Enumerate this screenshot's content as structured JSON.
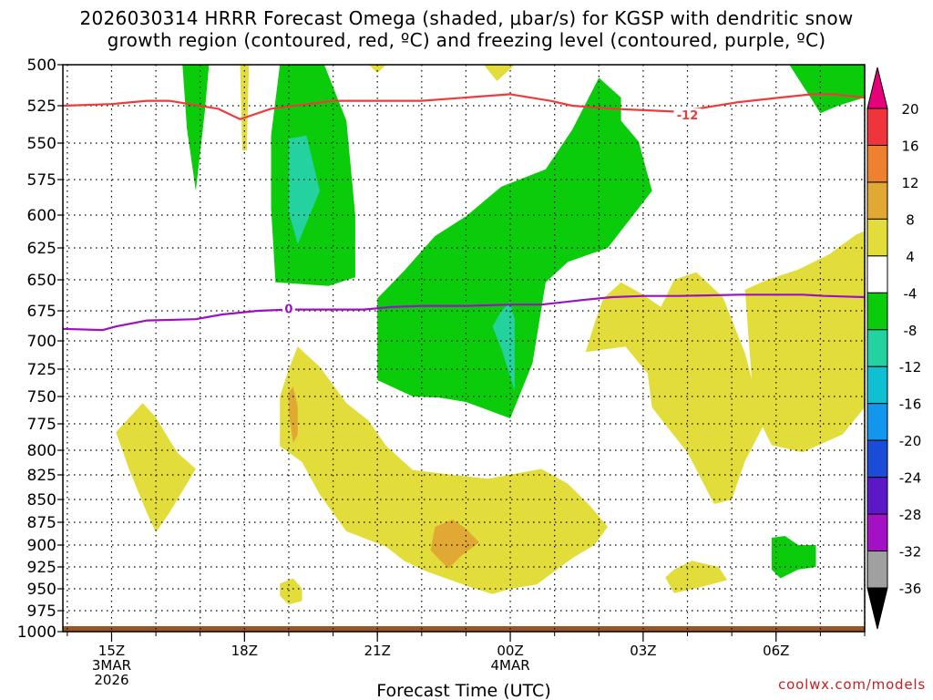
{
  "title_line1": "2026030314 HRRR Forecast Omega (shaded, μbar/s) for KGSP with dendritic snow",
  "title_line2": "growth region (contoured, red, ºC) and freezing level (contoured, purple, ºC)",
  "credit": "coolwx.com/models",
  "chart_data": {
    "type": "heatmap",
    "title": "2026030314 HRRR Forecast Omega (shaded, μbar/s) for KGSP with dendritic snow growth region (contoured, red, ºC) and freezing level (contoured, purple, ºC)",
    "xlabel": "Forecast Time (UTC)",
    "ylabel": "",
    "x_range_hours": [
      13.9,
      32.0
    ],
    "y_range_mb": [
      500,
      1000
    ],
    "y_axis_inverted": true,
    "y_ticks": [
      "500",
      "525",
      "550",
      "575",
      "600",
      "625",
      "650",
      "675",
      "700",
      "725",
      "750",
      "775",
      "800",
      "825",
      "850",
      "875",
      "900",
      "925",
      "950",
      "975",
      "1000"
    ],
    "x_ticks": [
      {
        "hour": 15,
        "labels": [
          "15Z",
          "3MAR",
          "2026"
        ]
      },
      {
        "hour": 18,
        "labels": [
          "18Z"
        ]
      },
      {
        "hour": 21,
        "labels": [
          "21Z"
        ]
      },
      {
        "hour": 24,
        "labels": [
          "00Z",
          "4MAR"
        ]
      },
      {
        "hour": 27,
        "labels": [
          "03Z"
        ]
      },
      {
        "hour": 30,
        "labels": [
          "06Z"
        ]
      }
    ],
    "colorbar": {
      "labels": [
        "20",
        "16",
        "12",
        "8",
        "4",
        "-4",
        "-8",
        "-12",
        "-16",
        "-20",
        "-24",
        "-28",
        "-32",
        "-36"
      ],
      "colors": [
        "#e6007a",
        "#f0343c",
        "#ee8030",
        "#e2a834",
        "#e2dd3a",
        "#ffffff",
        "#0acc0a",
        "#24d2a0",
        "#10c0d2",
        "#1296ee",
        "#1a4cd8",
        "#5a18c8",
        "#a410c4",
        "#a0a0a0",
        "#000000"
      ]
    },
    "omega_regions": [
      {
        "color": "#0acc0a",
        "points": [
          [
            16.6,
            500
          ],
          [
            17.2,
            500
          ],
          [
            17.1,
            530
          ],
          [
            16.9,
            583
          ],
          [
            16.7,
            540
          ]
        ]
      },
      {
        "color": "#e2dd3a",
        "points": [
          [
            17.9,
            500
          ],
          [
            18.1,
            500
          ],
          [
            18.05,
            555
          ],
          [
            17.95,
            555
          ]
        ]
      },
      {
        "color": "#0acc0a",
        "points": [
          [
            18.8,
            500
          ],
          [
            19.8,
            500
          ],
          [
            20.3,
            535
          ],
          [
            20.5,
            600
          ],
          [
            20.5,
            648
          ],
          [
            19.9,
            655
          ],
          [
            18.7,
            652
          ],
          [
            18.6,
            595
          ],
          [
            18.6,
            545
          ]
        ]
      },
      {
        "color": "#24d2a0",
        "points": [
          [
            19.0,
            547
          ],
          [
            19.4,
            545
          ],
          [
            19.7,
            583
          ],
          [
            19.2,
            622
          ],
          [
            19.0,
            598
          ]
        ]
      },
      {
        "color": "#e2dd3a",
        "points": [
          [
            20.8,
            500
          ],
          [
            21.2,
            500
          ],
          [
            21.0,
            505
          ]
        ]
      },
      {
        "color": "#e2dd3a",
        "points": [
          [
            23.4,
            500
          ],
          [
            24.1,
            500
          ],
          [
            23.7,
            510
          ]
        ]
      },
      {
        "color": "#e2dd3a",
        "points": [
          [
            29.3,
            658
          ],
          [
            29.8,
            650
          ],
          [
            30.5,
            642
          ],
          [
            31.2,
            630
          ],
          [
            31.8,
            615
          ],
          [
            32.0,
            612
          ],
          [
            32.0,
            760
          ],
          [
            31.5,
            785
          ],
          [
            30.6,
            802
          ],
          [
            29.9,
            795
          ],
          [
            29.5,
            762
          ]
        ]
      },
      {
        "color": "#0acc0a",
        "points": [
          [
            26.0,
            508
          ],
          [
            26.5,
            520
          ],
          [
            26.5,
            535
          ],
          [
            26.9,
            549
          ],
          [
            27.2,
            583
          ],
          [
            26.2,
            625
          ],
          [
            25.3,
            636
          ],
          [
            24.8,
            652
          ],
          [
            24.5,
            720
          ],
          [
            24.0,
            770
          ],
          [
            23.0,
            755
          ],
          [
            22.4,
            751
          ],
          [
            21.8,
            750
          ],
          [
            21.0,
            735
          ],
          [
            21.0,
            704
          ],
          [
            21.0,
            665
          ],
          [
            21.6,
            643
          ],
          [
            22.3,
            616
          ],
          [
            23.0,
            601
          ],
          [
            23.8,
            580
          ],
          [
            24.8,
            568
          ],
          [
            25.4,
            541
          ]
        ]
      },
      {
        "color": "#24d2a0",
        "points": [
          [
            23.6,
            688
          ],
          [
            23.8,
            675
          ],
          [
            24.0,
            668
          ],
          [
            24.1,
            682
          ],
          [
            24.1,
            745
          ],
          [
            23.8,
            707
          ]
        ]
      },
      {
        "color": "#0acc0a",
        "points": [
          [
            30.3,
            500
          ],
          [
            32.0,
            500
          ],
          [
            32.0,
            520
          ],
          [
            31.4,
            525
          ],
          [
            31.0,
            530
          ],
          [
            30.8,
            521
          ]
        ]
      },
      {
        "color": "#e2dd3a",
        "points": [
          [
            25.7,
            710
          ],
          [
            25.9,
            686
          ],
          [
            26.1,
            665
          ],
          [
            26.5,
            652
          ],
          [
            27.0,
            662
          ],
          [
            27.4,
            672
          ],
          [
            27.7,
            650
          ],
          [
            28.2,
            644
          ],
          [
            28.8,
            664
          ],
          [
            29.3,
            711
          ],
          [
            29.6,
            757
          ],
          [
            29.8,
            770
          ],
          [
            29.3,
            811
          ],
          [
            29.0,
            850
          ],
          [
            28.6,
            855
          ],
          [
            28.0,
            802
          ],
          [
            27.6,
            781
          ],
          [
            27.2,
            760
          ],
          [
            27.1,
            729
          ],
          [
            26.6,
            705
          ]
        ]
      },
      {
        "color": "#e2dd3a",
        "points": [
          [
            15.1,
            783
          ],
          [
            15.7,
            756
          ],
          [
            16.0,
            769
          ],
          [
            16.3,
            790
          ],
          [
            16.5,
            803
          ],
          [
            16.9,
            819
          ],
          [
            16.3,
            865
          ],
          [
            16.0,
            886
          ],
          [
            15.8,
            865
          ],
          [
            15.4,
            820
          ]
        ]
      },
      {
        "color": "#e2dd3a",
        "points": [
          [
            18.8,
            750
          ],
          [
            19.0,
            725
          ],
          [
            19.2,
            705
          ],
          [
            19.7,
            723
          ],
          [
            20.3,
            756
          ],
          [
            20.8,
            772
          ],
          [
            21.2,
            796
          ],
          [
            21.8,
            820
          ],
          [
            22.9,
            826
          ],
          [
            23.5,
            829
          ],
          [
            24.1,
            824
          ],
          [
            24.7,
            819
          ],
          [
            25.3,
            834
          ],
          [
            25.8,
            857
          ],
          [
            26.2,
            880
          ],
          [
            25.9,
            900
          ],
          [
            25.4,
            915
          ],
          [
            24.6,
            945
          ],
          [
            24.0,
            950
          ],
          [
            23.6,
            956
          ],
          [
            23.1,
            948
          ],
          [
            22.1,
            930
          ],
          [
            21.6,
            918
          ],
          [
            21.2,
            902
          ],
          [
            20.3,
            885
          ],
          [
            19.7,
            845
          ],
          [
            19.3,
            812
          ],
          [
            18.8,
            796
          ]
        ]
      },
      {
        "color": "#e2a834",
        "points": [
          [
            19.0,
            746
          ],
          [
            19.1,
            741
          ],
          [
            19.2,
            759
          ],
          [
            19.2,
            785
          ],
          [
            19.1,
            793
          ],
          [
            19.0,
            765
          ]
        ]
      },
      {
        "color": "#e2a834",
        "points": [
          [
            22.3,
            880
          ],
          [
            22.7,
            872
          ],
          [
            23.0,
            882
          ],
          [
            23.3,
            897
          ],
          [
            22.9,
            912
          ],
          [
            22.6,
            927
          ],
          [
            22.2,
            906
          ]
        ]
      },
      {
        "color": "#0acc0a",
        "points": [
          [
            29.9,
            892
          ],
          [
            30.2,
            890
          ],
          [
            30.5,
            900
          ],
          [
            30.9,
            900
          ],
          [
            30.9,
            925
          ],
          [
            30.5,
            928
          ],
          [
            30.1,
            938
          ],
          [
            29.9,
            928
          ]
        ]
      },
      {
        "color": "#e2dd3a",
        "points": [
          [
            27.7,
            928
          ],
          [
            28.1,
            918
          ],
          [
            28.7,
            925
          ],
          [
            28.9,
            940
          ],
          [
            28.3,
            948
          ],
          [
            27.7,
            955
          ],
          [
            27.5,
            937
          ]
        ]
      },
      {
        "color": "#e2dd3a",
        "points": [
          [
            18.8,
            944
          ],
          [
            19.1,
            938
          ],
          [
            19.3,
            950
          ],
          [
            19.3,
            964
          ],
          [
            19.0,
            968
          ],
          [
            18.8,
            958
          ]
        ]
      }
    ],
    "contours": [
      {
        "name": "dendritic growth -12C",
        "label": "-12",
        "label_at": [
          28.0,
          531
        ],
        "color": "#ee3c3c",
        "points": [
          [
            13.9,
            525
          ],
          [
            15.0,
            524
          ],
          [
            15.8,
            522
          ],
          [
            16.3,
            522
          ],
          [
            17.4,
            527
          ],
          [
            17.9,
            534
          ],
          [
            18.6,
            527
          ],
          [
            20.0,
            522
          ],
          [
            21.0,
            522
          ],
          [
            22.0,
            522
          ],
          [
            23.0,
            520
          ],
          [
            24.0,
            518
          ],
          [
            24.9,
            522
          ],
          [
            25.4,
            525
          ],
          [
            26.3,
            527
          ],
          [
            27.0,
            528
          ],
          [
            27.8,
            529
          ],
          [
            29.1,
            523
          ],
          [
            30.1,
            520
          ],
          [
            30.8,
            518
          ],
          [
            31.3,
            518
          ],
          [
            32.0,
            520
          ]
        ]
      },
      {
        "name": "freezing level 0C",
        "label": "0",
        "label_at": [
          19.0,
          673
        ],
        "color": "#9a12c4",
        "points": [
          [
            13.9,
            690
          ],
          [
            14.8,
            691
          ],
          [
            15.1,
            688
          ],
          [
            15.8,
            683
          ],
          [
            16.9,
            682
          ],
          [
            17.5,
            678
          ],
          [
            18.3,
            675
          ],
          [
            19.0,
            674
          ],
          [
            20.0,
            674
          ],
          [
            20.7,
            674
          ],
          [
            21.3,
            672
          ],
          [
            22.0,
            671
          ],
          [
            23.0,
            671
          ],
          [
            24.0,
            670
          ],
          [
            24.7,
            670
          ],
          [
            25.7,
            666
          ],
          [
            26.3,
            664
          ],
          [
            27.0,
            663
          ],
          [
            27.8,
            663
          ],
          [
            29.2,
            662
          ],
          [
            30.0,
            662
          ],
          [
            30.6,
            662
          ],
          [
            31.1,
            663
          ],
          [
            32.0,
            664
          ]
        ]
      }
    ]
  }
}
